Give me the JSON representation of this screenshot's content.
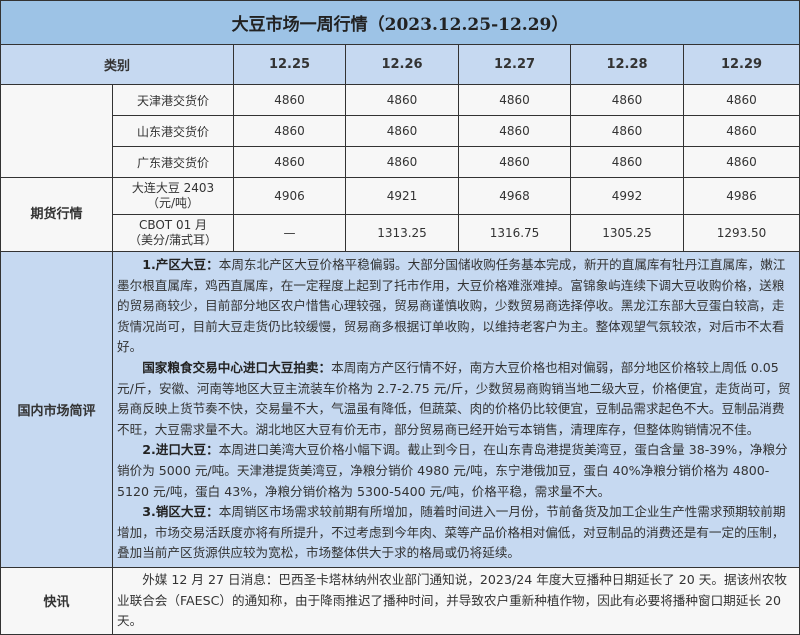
{
  "title": "大豆市场一周行情（2023.12.25-12.29）",
  "header": {
    "category": "类别",
    "dates": [
      "12.25",
      "12.26",
      "12.27",
      "12.28",
      "12.29"
    ]
  },
  "spot_rows": [
    {
      "label": "天津港交货价",
      "values": [
        "4860",
        "4860",
        "4860",
        "4860",
        "4860"
      ]
    },
    {
      "label": "山东港交货价",
      "values": [
        "4860",
        "4860",
        "4860",
        "4860",
        "4860"
      ]
    },
    {
      "label": "广东港交货价",
      "values": [
        "4860",
        "4860",
        "4860",
        "4860",
        "4860"
      ]
    }
  ],
  "futures": {
    "group": "期货行情",
    "rows": [
      {
        "label1": "大连大豆 2403",
        "label2": "（元/吨）",
        "values": [
          "4906",
          "4921",
          "4968",
          "4992",
          "4986"
        ]
      },
      {
        "label1": "CBOT 01 月",
        "label2": "（美分/蒲式耳）",
        "values": [
          "—",
          "1313.25",
          "1316.75",
          "1305.25",
          "1293.50"
        ]
      }
    ]
  },
  "commentary": {
    "group": "国内市场简评",
    "paragraphs": [
      {
        "head": "1.产区大豆：",
        "text": "本周东北产区大豆价格平稳偏弱。大部分国储收购任务基本完成，新开的直属库有牡丹江直属库，嫩江墨尔根直属库，鸡西直属库，在一定程度上起到了托市作用，大豆价格难涨难掉。富锦象屿连续下调大豆收购价格，送粮的贸易商较少，目前部分地区农户惜售心理较强，贸易商谨慎收购，少数贸易商选择停收。黑龙江东部大豆蛋白较高，走货情况尚可，目前大豆走货仍比较缓慢，贸易商多根据订单收购，以维持老客户为主。整体观望气氛较浓，对后市不太看好。"
      },
      {
        "head": "国家粮食交易中心进口大豆拍卖：",
        "text": "本周南方产区行情不好，南方大豆价格也相对偏弱，部分地区价格较上周低 0.05 元/斤，安徽、河南等地区大豆主流装车价格为 2.7-2.75 元/斤，少数贸易商购销当地二级大豆，价格便宜，走货尚可，贸易商反映上货节奏不快，交易量不大，气温虽有降低，但蔬菜、肉的价格仍比较便宜，豆制品需求起色不大。豆制品消费不旺，大豆需求量不大。湖北地区大豆有价无市，部分贸易商已经开始亏本销售，清理库存，但整体购销情况不佳。"
      },
      {
        "head": "2.进口大豆：",
        "text": "本周进口美湾大豆价格小幅下调。截止到今日，在山东青岛港提货美湾豆，蛋白含量 38-39%，净粮分销价为 5000 元/吨。天津港提货美湾豆，净粮分销价 4980 元/吨，东宁港俄加豆，蛋白 40%净粮分销价格为 4800-5120 元/吨，蛋白 43%，净粮分销价格为 5300-5400 元/吨，价格平稳，需求量不大。"
      },
      {
        "head": "3.销区大豆：",
        "text": "本周销区市场需求较前期有所增加，随着时间进入一月份，节前备货及加工企业生产性需求预期较前期增加，市场交易活跃度亦将有所提升，不过考虑到今年肉、菜等产品价格相对偏低，对豆制品的消费还是有一定的压制，叠加当前产区货源供应较为宽松，市场整体供大于求的格局或仍将延续。"
      }
    ]
  },
  "news": {
    "group": "快讯",
    "text": "外媒 12 月 27 日消息：巴西圣卡塔林纳州农业部门通知说，2023/24 年度大豆播种日期延长了 20 天。据该州农牧业联合会（FAESC）的通知称，由于降雨推迟了播种时间，并导致农户重新种植作物，因此有必要将播种窗口期延长 20 天。"
  },
  "colors": {
    "title_bg": "#9dc3e6",
    "header_bg": "#c6d9f1",
    "body_bg": "#f7f7f7"
  }
}
